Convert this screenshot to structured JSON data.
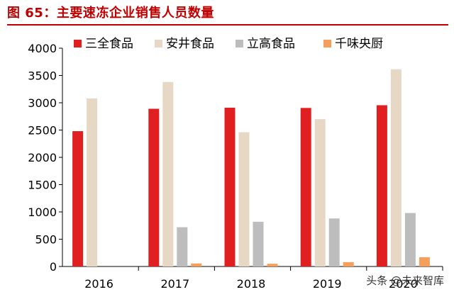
{
  "title": "图 65：主要速冻企业销售人员数量",
  "watermark": "头条 @未来智库",
  "chart_data": {
    "type": "bar",
    "title": "图 65：主要速冻企业销售人员数量",
    "xlabel": "",
    "ylabel": "",
    "categories": [
      "2016",
      "2017",
      "2018",
      "2019",
      "2020"
    ],
    "ylim": [
      0,
      4000
    ],
    "yticks": [
      0,
      500,
      1000,
      1500,
      2000,
      2500,
      3000,
      3500,
      4000
    ],
    "legend_position": "top",
    "grid": false,
    "series": [
      {
        "name": "三全食品",
        "color": "#e02020",
        "values": [
          2480,
          2890,
          2910,
          2905,
          2955
        ]
      },
      {
        "name": "安井食品",
        "color": "#e6d8c4",
        "values": [
          3080,
          3380,
          2460,
          2700,
          3615
        ]
      },
      {
        "name": "立高食品",
        "color": "#bdbdbd",
        "values": [
          0,
          720,
          820,
          880,
          980
        ]
      },
      {
        "name": "千味央厨",
        "color": "#f5a05a",
        "values": [
          0,
          55,
          50,
          80,
          170
        ]
      }
    ]
  }
}
